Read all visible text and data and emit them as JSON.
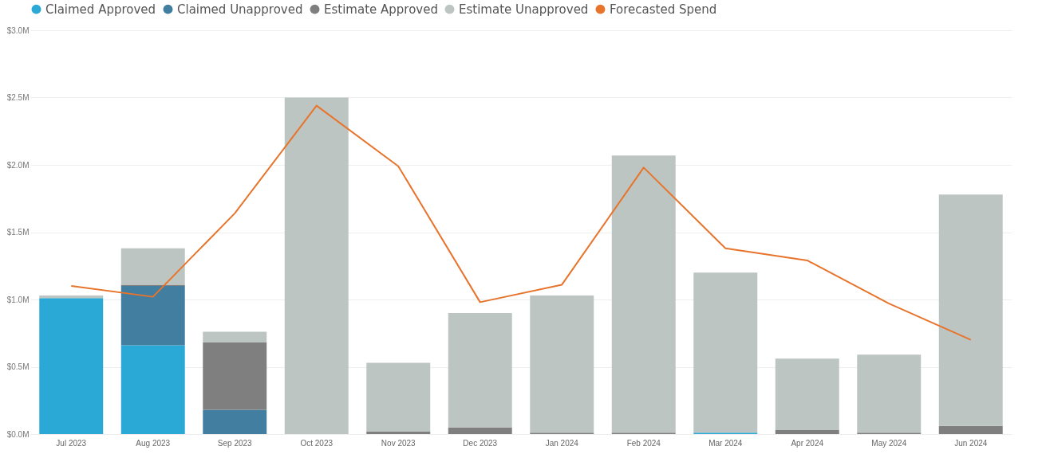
{
  "chart_data": {
    "type": "bar",
    "stacked": true,
    "legend": "top left",
    "grid": "y",
    "categories": [
      "Jul 2023",
      "Aug 2023",
      "Sep 2023",
      "Oct 2023",
      "Nov 2023",
      "Dec 2023",
      "Jan 2024",
      "Feb 2024",
      "Mar 2024",
      "Apr 2024",
      "May 2024",
      "Jun 2024"
    ],
    "ylim": [
      0,
      3
    ],
    "yticks": [
      {
        "value": 0,
        "label": "$0.0M"
      },
      {
        "value": 0.5,
        "label": "$0.5M"
      },
      {
        "value": 1,
        "label": "$1.0M"
      },
      {
        "value": 1.5,
        "label": "$1.5M"
      },
      {
        "value": 2,
        "label": "$2.0M"
      },
      {
        "value": 2.5,
        "label": "$2.5M"
      },
      {
        "value": 3,
        "label": "$3.0M"
      }
    ],
    "series": [
      {
        "name": "Claimed Approved",
        "color": "#2aa9d6",
        "values": [
          1.01,
          0.66,
          0,
          0,
          0,
          0,
          0,
          0,
          0.01,
          0,
          0,
          0
        ]
      },
      {
        "name": "Claimed Unapproved",
        "color": "#417ea0",
        "values": [
          0,
          0.44,
          0.18,
          0,
          0,
          0,
          0,
          0,
          0,
          0,
          0,
          0
        ]
      },
      {
        "name": "Estimate Approved",
        "color": "#7f7f7f",
        "values": [
          0,
          0.01,
          0.5,
          0,
          0.02,
          0.05,
          0.01,
          0.01,
          0,
          0.03,
          0.01,
          0.06
        ]
      },
      {
        "name": "Estimate Unapproved",
        "color": "#bcc5c1",
        "values": [
          0.02,
          0.27,
          0.08,
          2.5,
          0.51,
          0.85,
          1.02,
          2.06,
          1.19,
          0.53,
          0.58,
          1.72
        ]
      },
      {
        "name": "Forecasted Spend",
        "type": "line",
        "color": "#e8742c",
        "values": [
          1.1,
          1.02,
          1.64,
          2.44,
          1.99,
          0.98,
          1.11,
          1.98,
          1.38,
          1.29,
          0.97,
          0.7
        ]
      }
    ]
  }
}
